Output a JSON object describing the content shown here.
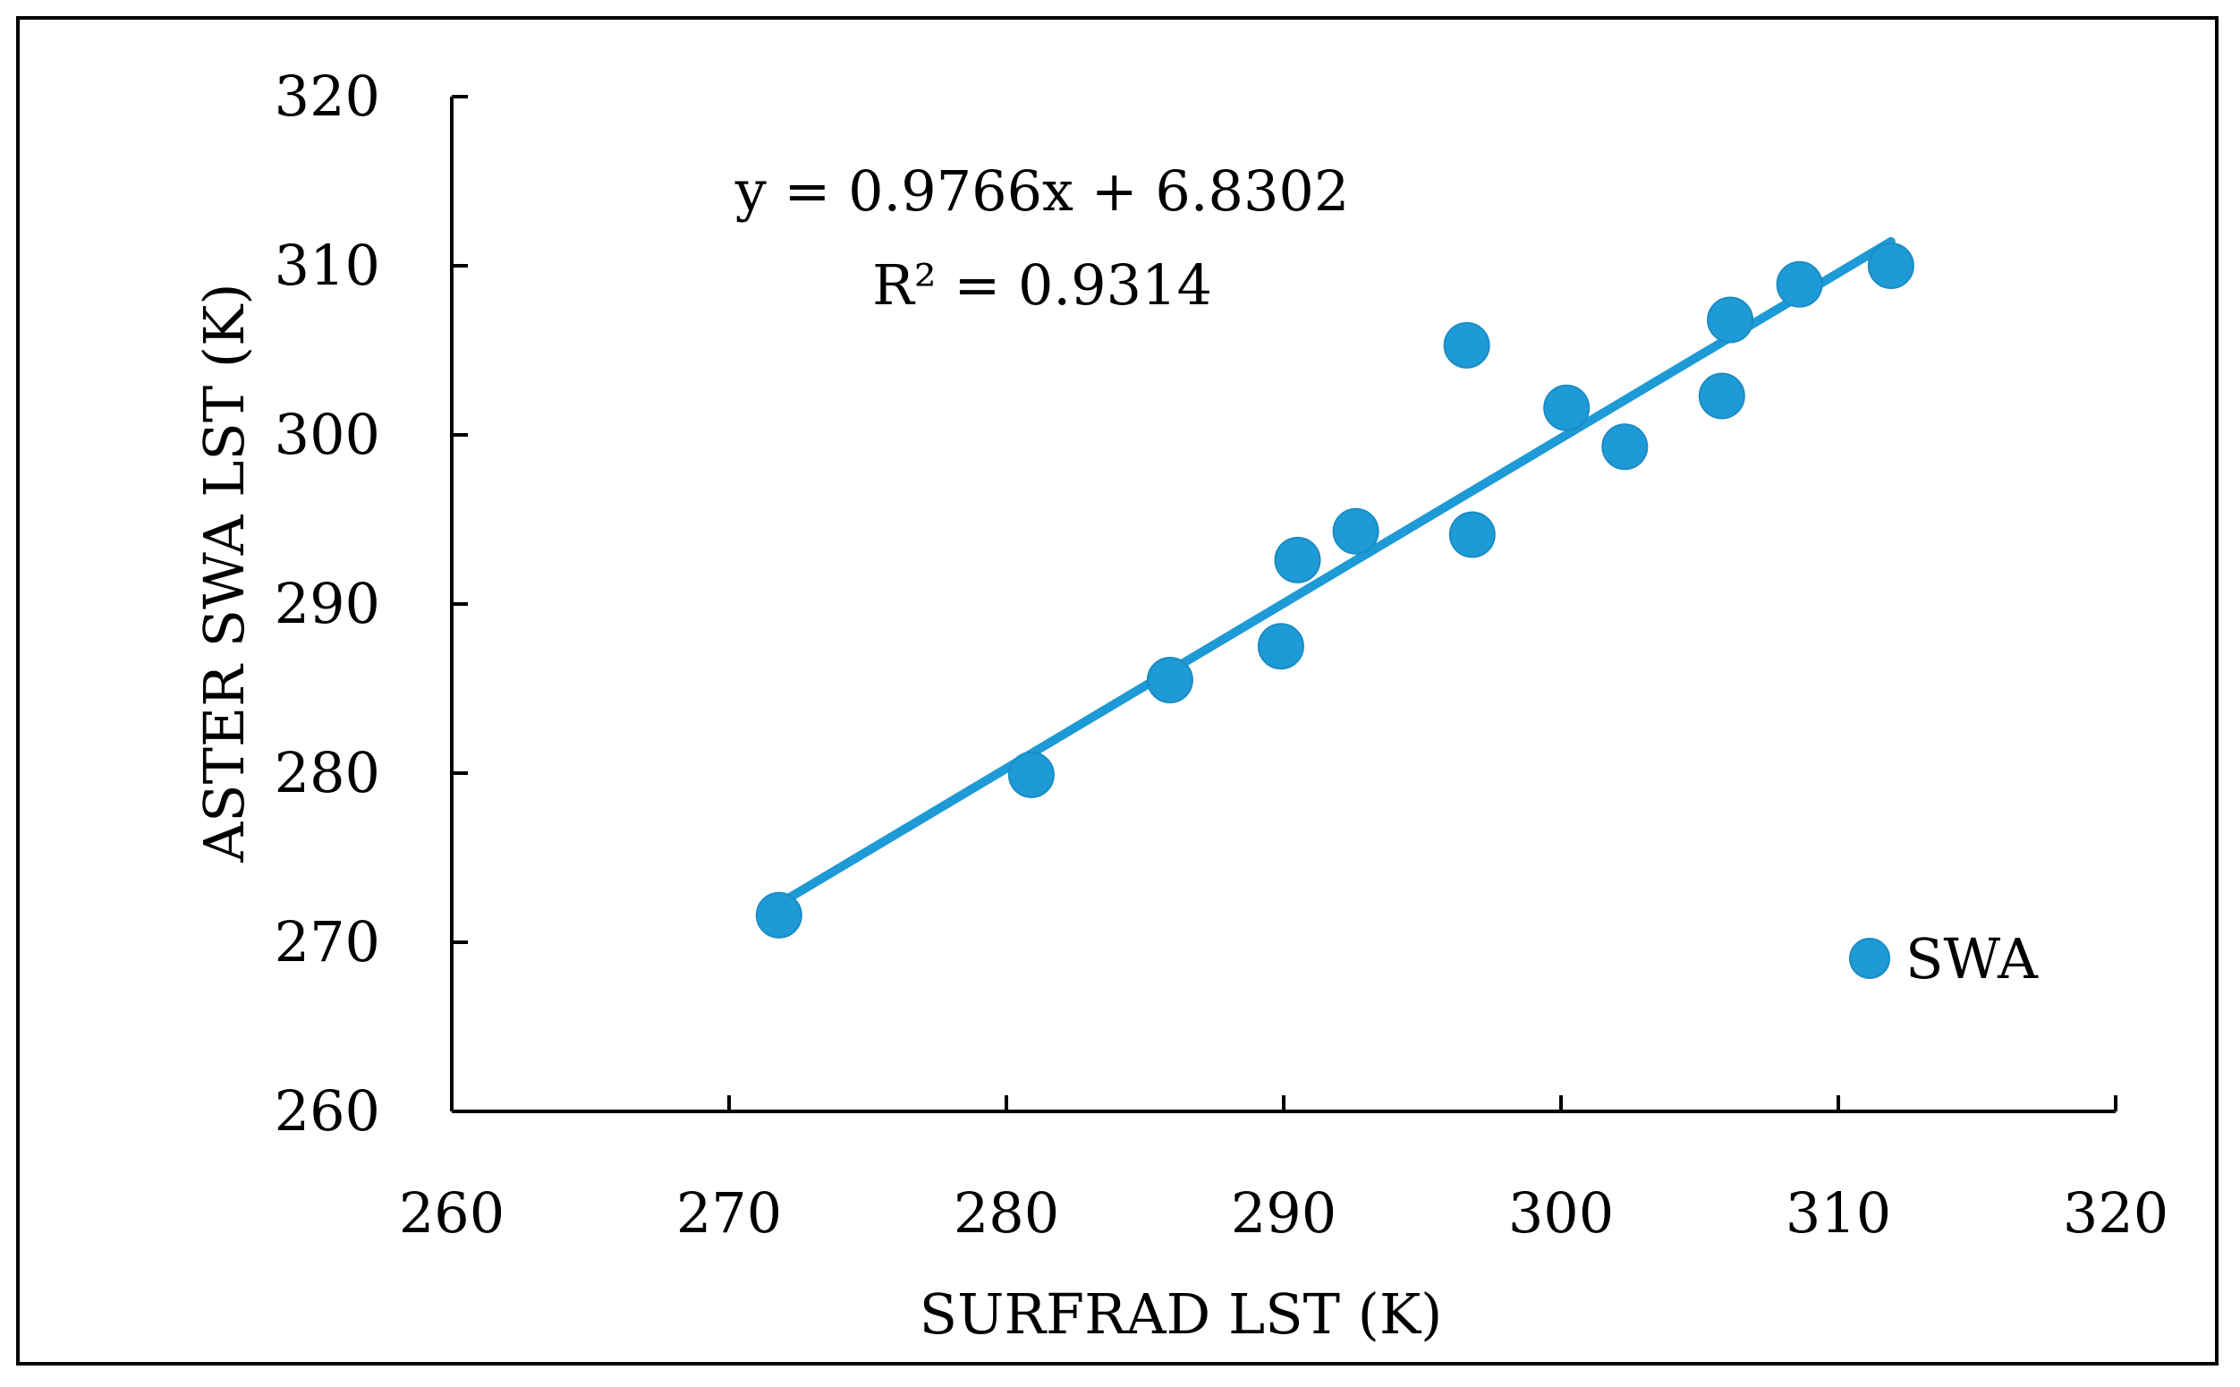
{
  "chart_data": {
    "type": "scatter",
    "title": "",
    "xlabel": "SURFRAD LST (K)",
    "ylabel": "ASTER SWA LST (K)",
    "xlim": [
      260,
      320
    ],
    "ylim": [
      260,
      320
    ],
    "xticks": [
      260,
      270,
      280,
      290,
      300,
      310,
      320
    ],
    "yticks": [
      260,
      270,
      280,
      290,
      300,
      310,
      320
    ],
    "series": [
      {
        "name": "SWA",
        "color": "#1e9ad6",
        "points": [
          {
            "x": 271.8,
            "y": 271.6
          },
          {
            "x": 280.9,
            "y": 279.9
          },
          {
            "x": 285.9,
            "y": 285.5
          },
          {
            "x": 289.9,
            "y": 287.5
          },
          {
            "x": 290.5,
            "y": 292.6
          },
          {
            "x": 292.6,
            "y": 294.3
          },
          {
            "x": 296.6,
            "y": 305.3
          },
          {
            "x": 296.8,
            "y": 294.1
          },
          {
            "x": 300.2,
            "y": 301.6
          },
          {
            "x": 302.3,
            "y": 299.3
          },
          {
            "x": 305.8,
            "y": 302.3
          },
          {
            "x": 306.1,
            "y": 306.8
          },
          {
            "x": 308.6,
            "y": 308.9
          },
          {
            "x": 311.9,
            "y": 310.0
          }
        ]
      }
    ],
    "trendline": {
      "slope": 0.9766,
      "intercept": 6.8302,
      "x_range": [
        271.8,
        311.9
      ],
      "equation_label": "y = 0.9766x + 6.8302",
      "r2_label": "R² = 0.9314"
    },
    "legend": {
      "position": "bottom-right",
      "label": "SWA"
    }
  }
}
